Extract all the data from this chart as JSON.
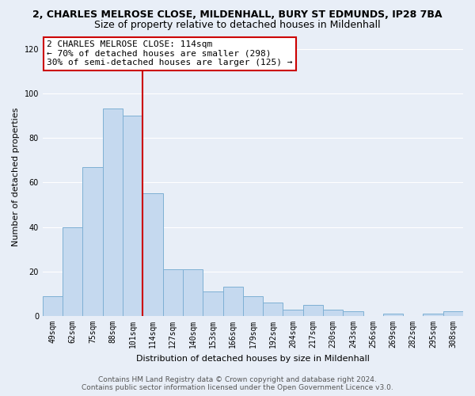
{
  "title_line1": "2, CHARLES MELROSE CLOSE, MILDENHALL, BURY ST EDMUNDS, IP28 7BA",
  "title_line2": "Size of property relative to detached houses in Mildenhall",
  "xlabel": "Distribution of detached houses by size in Mildenhall",
  "ylabel": "Number of detached properties",
  "bar_labels": [
    "49sqm",
    "62sqm",
    "75sqm",
    "88sqm",
    "101sqm",
    "114sqm",
    "127sqm",
    "140sqm",
    "153sqm",
    "166sqm",
    "179sqm",
    "192sqm",
    "204sqm",
    "217sqm",
    "230sqm",
    "243sqm",
    "256sqm",
    "269sqm",
    "282sqm",
    "295sqm",
    "308sqm"
  ],
  "bar_values": [
    9,
    40,
    67,
    93,
    90,
    55,
    21,
    21,
    11,
    13,
    9,
    6,
    3,
    5,
    3,
    2,
    0,
    1,
    0,
    1,
    2
  ],
  "bar_color": "#c5d9ef",
  "bar_edge_color": "#7eb0d4",
  "highlight_index": 5,
  "highlight_line_color": "#cc0000",
  "ylim": [
    0,
    125
  ],
  "yticks": [
    0,
    20,
    40,
    60,
    80,
    100,
    120
  ],
  "annotation_title": "2 CHARLES MELROSE CLOSE: 114sqm",
  "annotation_line1": "← 70% of detached houses are smaller (298)",
  "annotation_line2": "30% of semi-detached houses are larger (125) →",
  "annotation_box_color": "#ffffff",
  "annotation_box_edge_color": "#cc0000",
  "footer_line1": "Contains HM Land Registry data © Crown copyright and database right 2024.",
  "footer_line2": "Contains public sector information licensed under the Open Government Licence v3.0.",
  "bg_color": "#e8eef7",
  "plot_bg_color": "#e8eef7",
  "grid_color": "#ffffff",
  "title_fontsize": 9,
  "subtitle_fontsize": 9,
  "axis_label_fontsize": 8,
  "tick_fontsize": 7,
  "annotation_fontsize": 8,
  "footer_fontsize": 6.5
}
